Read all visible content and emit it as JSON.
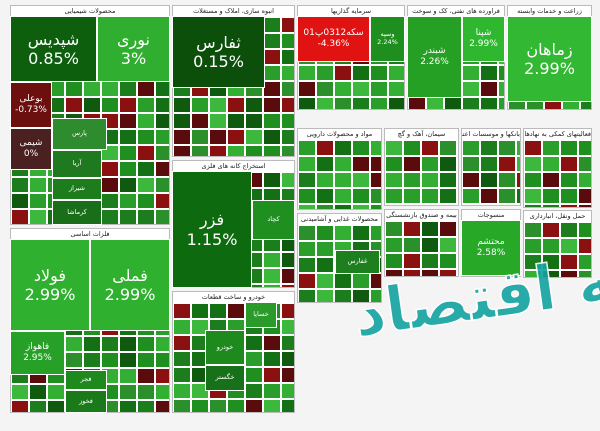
{
  "sectors": [
    {
      "title": "محصولات شیمیایی",
      "tiles": [
        {
          "name": "شپدیس",
          "change": "0.85%",
          "color": "#0d5f0d"
        },
        {
          "name": "نوری",
          "change": "3%",
          "color": "#2fae2f"
        },
        {
          "name": "بوعلی",
          "change": "-0.73%",
          "color": "#6b0f0f"
        },
        {
          "name": "شیمی",
          "change": "0%",
          "color": "#4a2020"
        },
        {
          "name": "پارس",
          "color": "#2e8b2e"
        },
        {
          "name": "آریا",
          "color": "#1f7a1f"
        },
        {
          "name": "شیراز",
          "color": "#1d7d1d"
        },
        {
          "name": "کرماشا",
          "color": "#1a6e1a"
        }
      ]
    },
    {
      "title": "انبوه سازی، املاک و مستغلات",
      "tiles": [
        {
          "name": "ثفارس",
          "change": "0.15%",
          "color": "#0b4f0b"
        }
      ]
    },
    {
      "title": "سرمایه گذاریها",
      "tiles": [
        {
          "name": "سکه0312پ01",
          "change": "-4.36%",
          "color": "#e01212"
        },
        {
          "name": "وسپه",
          "change": "2.24%",
          "color": "#1e8e1e"
        }
      ]
    },
    {
      "title": "فراورده های نفتی، کک و سوخت",
      "tiles": [
        {
          "name": "شبندر",
          "change": "2.26%",
          "color": "#25a025"
        },
        {
          "name": "شپنا",
          "change": "2.99%",
          "color": "#2fb82f"
        }
      ]
    },
    {
      "title": "زراعت و خدمات وابسته",
      "tiles": [
        {
          "name": "زماهان",
          "change": "2.99%",
          "color": "#33b833"
        }
      ]
    },
    {
      "title": "استخراج کانه های فلزی",
      "tiles": [
        {
          "name": "فزر",
          "change": "1.15%",
          "color": "#0e6a0e"
        },
        {
          "name": "کچاد",
          "color": "#1f8f1f"
        }
      ]
    },
    {
      "title": "فلزات اساسی",
      "tiles": [
        {
          "name": "فولاد",
          "change": "2.99%",
          "color": "#2fb02f"
        },
        {
          "name": "فملی",
          "change": "2.99%",
          "color": "#2fb02f"
        },
        {
          "name": "فاهواز",
          "change": "2.95%",
          "color": "#27a027"
        },
        {
          "name": "فجر",
          "color": "#1e8a1e"
        },
        {
          "name": "فخوز",
          "color": "#1a7a1a"
        }
      ]
    },
    {
      "title": "خودرو و ساخت قطعات",
      "tiles": [
        {
          "name": "خودرو",
          "color": "#1e8a1e"
        },
        {
          "name": "خساپا",
          "color": "#2a9a2a"
        },
        {
          "name": "خگستر",
          "color": "#17701a"
        }
      ]
    },
    {
      "title": "مواد و محصولات دارویی",
      "tiles": []
    },
    {
      "title": "سیمان، آهک و گچ",
      "tiles": []
    },
    {
      "title": "بانکها و موسسات اعتباری",
      "tiles": []
    },
    {
      "title": "فعالیتهای کمکی به نهادهای مالی",
      "tiles": []
    },
    {
      "title": "منسوجات",
      "tiles": [
        {
          "name": "محتشم",
          "change": "2.58%",
          "color": "#27a827"
        }
      ]
    },
    {
      "title": "حمل ونقل، انبارداری",
      "tiles": []
    },
    {
      "title": "محصولات غذایی و آشامیدنی",
      "tiles": [
        {
          "name": "غفارس",
          "color": "#1d7f1d"
        }
      ]
    },
    {
      "title": "بیمه و صندوق بازنشستگی",
      "tiles": []
    }
  ],
  "watermark": "صفحه اقتصاد"
}
